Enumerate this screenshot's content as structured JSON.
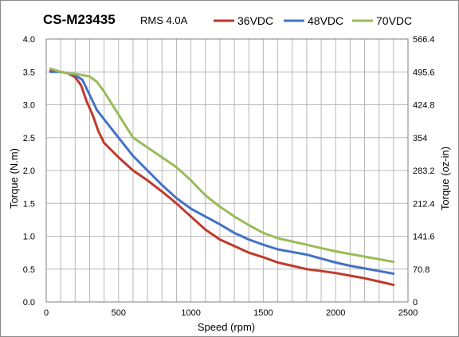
{
  "chart_data": {
    "type": "line",
    "title": "CS-M23435",
    "subtitle": "RMS 4.0A",
    "xlabel": "Speed (rpm)",
    "ylabel": "Torque (N.m)",
    "y2label": "Torque (oz-in)",
    "xlim": [
      0,
      2500
    ],
    "ylim": [
      0,
      4.0
    ],
    "x_ticks": [
      "0",
      "500",
      "1000",
      "1500",
      "2000",
      "2500"
    ],
    "y_ticks": [
      "0.0",
      "0.5",
      "1.0",
      "1.5",
      "2.0",
      "2.5",
      "3.0",
      "3.5",
      "4.0"
    ],
    "y2_ticks": [
      "0",
      "70.8",
      "141.6",
      "212.4",
      "283.2",
      "354",
      "424.8",
      "495.6",
      "566.4"
    ],
    "grid": true,
    "legend_position": "top",
    "series": [
      {
        "name": "36VDC",
        "color": "#c0392b",
        "points": [
          [
            30,
            3.52
          ],
          [
            100,
            3.5
          ],
          [
            150,
            3.48
          ],
          [
            200,
            3.42
          ],
          [
            240,
            3.3
          ],
          [
            280,
            3.05
          ],
          [
            320,
            2.85
          ],
          [
            360,
            2.6
          ],
          [
            400,
            2.42
          ],
          [
            500,
            2.2
          ],
          [
            600,
            2.0
          ],
          [
            700,
            1.85
          ],
          [
            800,
            1.68
          ],
          [
            900,
            1.5
          ],
          [
            1000,
            1.3
          ],
          [
            1100,
            1.1
          ],
          [
            1200,
            0.95
          ],
          [
            1300,
            0.85
          ],
          [
            1400,
            0.75
          ],
          [
            1500,
            0.68
          ],
          [
            1600,
            0.6
          ],
          [
            1700,
            0.55
          ],
          [
            1800,
            0.5
          ],
          [
            1900,
            0.47
          ],
          [
            2000,
            0.44
          ],
          [
            2100,
            0.4
          ],
          [
            2200,
            0.36
          ],
          [
            2300,
            0.31
          ],
          [
            2400,
            0.26
          ]
        ]
      },
      {
        "name": "48VDC",
        "color": "#4472c4",
        "points": [
          [
            30,
            3.5
          ],
          [
            100,
            3.5
          ],
          [
            150,
            3.48
          ],
          [
            200,
            3.45
          ],
          [
            250,
            3.38
          ],
          [
            300,
            3.15
          ],
          [
            350,
            2.92
          ],
          [
            400,
            2.78
          ],
          [
            500,
            2.5
          ],
          [
            600,
            2.22
          ],
          [
            700,
            2.0
          ],
          [
            800,
            1.78
          ],
          [
            900,
            1.58
          ],
          [
            1000,
            1.42
          ],
          [
            1100,
            1.3
          ],
          [
            1200,
            1.18
          ],
          [
            1300,
            1.05
          ],
          [
            1400,
            0.95
          ],
          [
            1500,
            0.87
          ],
          [
            1600,
            0.8
          ],
          [
            1700,
            0.76
          ],
          [
            1800,
            0.72
          ],
          [
            1900,
            0.66
          ],
          [
            2000,
            0.6
          ],
          [
            2100,
            0.55
          ],
          [
            2200,
            0.51
          ],
          [
            2300,
            0.47
          ],
          [
            2400,
            0.43
          ]
        ]
      },
      {
        "name": "70VDC",
        "color": "#9bbb59",
        "points": [
          [
            30,
            3.55
          ],
          [
            100,
            3.5
          ],
          [
            150,
            3.48
          ],
          [
            200,
            3.47
          ],
          [
            250,
            3.45
          ],
          [
            300,
            3.43
          ],
          [
            350,
            3.35
          ],
          [
            400,
            3.2
          ],
          [
            500,
            2.85
          ],
          [
            600,
            2.5
          ],
          [
            700,
            2.35
          ],
          [
            800,
            2.2
          ],
          [
            900,
            2.05
          ],
          [
            1000,
            1.85
          ],
          [
            1100,
            1.62
          ],
          [
            1200,
            1.45
          ],
          [
            1300,
            1.3
          ],
          [
            1400,
            1.17
          ],
          [
            1500,
            1.05
          ],
          [
            1600,
            0.97
          ],
          [
            1700,
            0.92
          ],
          [
            1800,
            0.87
          ],
          [
            1900,
            0.82
          ],
          [
            2000,
            0.77
          ],
          [
            2100,
            0.73
          ],
          [
            2200,
            0.69
          ],
          [
            2300,
            0.65
          ],
          [
            2400,
            0.61
          ]
        ]
      }
    ]
  }
}
